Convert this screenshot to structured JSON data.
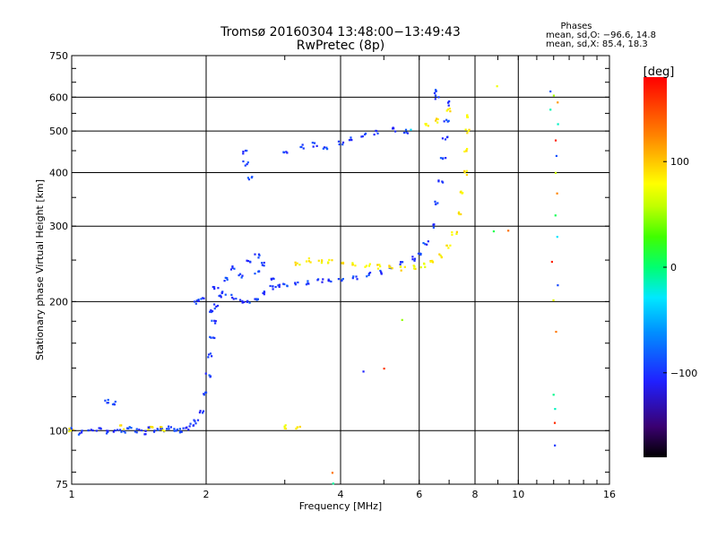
{
  "chart_data": {
    "type": "scatter",
    "title": "Tromsø 20160304 13:48:00−13:49:43",
    "subtitle": "RwPretec (8p)",
    "xlabel": "Frequency [MHz]",
    "ylabel": "Stationary phase Virtual Height [km]",
    "xscale": "log",
    "yscale": "log",
    "xlim": [
      1,
      16
    ],
    "ylim": [
      75,
      750
    ],
    "grid": true,
    "x_ticks": [
      1,
      2,
      4,
      6,
      8,
      10,
      16
    ],
    "x_tick_labels": [
      "1",
      "2",
      "4",
      "6",
      "8",
      "10",
      "16"
    ],
    "y_ticks": [
      75,
      100,
      200,
      300,
      400,
      500,
      600,
      750
    ],
    "y_tick_labels": [
      "75",
      "100",
      "200",
      "300",
      "400",
      "500",
      "600",
      "750"
    ],
    "legend": {
      "title": "Phases",
      "lines": [
        "mean, sd,O: −96.6, 14.8",
        "mean, sd,X:  85.4, 18.3"
      ]
    },
    "colorbar": {
      "label": "[deg]",
      "range": [
        -180,
        180
      ],
      "ticks": [
        100,
        0,
        -100
      ],
      "tick_labels": [
        "100",
        "0",
        "−100"
      ]
    },
    "series": [
      {
        "mode": "O",
        "phase_deg": -96.6,
        "points": [
          [
            1.0,
            101
          ],
          [
            1.05,
            99
          ],
          [
            1.1,
            100
          ],
          [
            1.15,
            101
          ],
          [
            1.2,
            99
          ],
          [
            1.25,
            100
          ],
          [
            1.3,
            100
          ],
          [
            1.35,
            101
          ],
          [
            1.4,
            100
          ],
          [
            1.45,
            99
          ],
          [
            1.5,
            101
          ],
          [
            1.55,
            100
          ],
          [
            1.6,
            100
          ],
          [
            1.65,
            102
          ],
          [
            1.7,
            101
          ],
          [
            1.75,
            100
          ],
          [
            1.8,
            101
          ],
          [
            1.85,
            103
          ],
          [
            1.9,
            105
          ],
          [
            1.95,
            110
          ],
          [
            2.0,
            122
          ],
          [
            2.02,
            135
          ],
          [
            2.04,
            150
          ],
          [
            2.06,
            165
          ],
          [
            2.08,
            180
          ],
          [
            2.1,
            195
          ],
          [
            2.15,
            205
          ],
          [
            2.2,
            210
          ],
          [
            2.3,
            205
          ],
          [
            2.4,
            200
          ],
          [
            2.5,
            199
          ],
          [
            2.6,
            202
          ],
          [
            2.7,
            210
          ],
          [
            2.8,
            215
          ],
          [
            2.9,
            218
          ],
          [
            3.0,
            219
          ],
          [
            3.2,
            221
          ],
          [
            3.4,
            222
          ],
          [
            3.6,
            223
          ],
          [
            3.8,
            224
          ],
          [
            4.0,
            225
          ],
          [
            4.3,
            228
          ],
          [
            4.6,
            231
          ],
          [
            4.9,
            235
          ],
          [
            5.2,
            239
          ],
          [
            5.5,
            245
          ],
          [
            5.8,
            252
          ],
          [
            6.0,
            260
          ],
          [
            6.2,
            275
          ],
          [
            6.4,
            300
          ],
          [
            6.6,
            340
          ],
          [
            6.7,
            380
          ],
          [
            6.8,
            430
          ],
          [
            6.85,
            480
          ],
          [
            6.9,
            530
          ],
          [
            6.95,
            580
          ],
          [
            1.2,
            117
          ],
          [
            1.25,
            116
          ],
          [
            1.9,
            200
          ],
          [
            1.95,
            202
          ],
          [
            2.05,
            190
          ],
          [
            2.1,
            215
          ],
          [
            2.2,
            225
          ],
          [
            2.3,
            240
          ],
          [
            2.4,
            230
          ],
          [
            2.5,
            250
          ],
          [
            2.6,
            235
          ],
          [
            2.7,
            245
          ],
          [
            2.8,
            228
          ],
          [
            2.45,
            420
          ],
          [
            2.45,
            445
          ],
          [
            2.5,
            390
          ],
          [
            2.6,
            255
          ],
          [
            3.0,
            450
          ],
          [
            3.3,
            460
          ],
          [
            3.5,
            465
          ],
          [
            3.7,
            455
          ],
          [
            4.0,
            470
          ],
          [
            4.2,
            480
          ],
          [
            4.5,
            490
          ],
          [
            4.8,
            495
          ],
          [
            5.3,
            505
          ],
          [
            5.6,
            500
          ],
          [
            6.5,
            620
          ],
          [
            6.6,
            600
          ]
        ]
      },
      {
        "mode": "X",
        "phase_deg": 85.4,
        "points": [
          [
            3.2,
            245
          ],
          [
            3.4,
            250
          ],
          [
            3.6,
            249
          ],
          [
            3.8,
            248
          ],
          [
            4.0,
            247
          ],
          [
            4.3,
            245
          ],
          [
            4.6,
            243
          ],
          [
            4.9,
            241
          ],
          [
            5.2,
            240
          ],
          [
            5.5,
            239
          ],
          [
            5.8,
            240
          ],
          [
            6.1,
            243
          ],
          [
            6.4,
            247
          ],
          [
            6.7,
            255
          ],
          [
            7.0,
            270
          ],
          [
            7.2,
            290
          ],
          [
            7.4,
            320
          ],
          [
            7.5,
            360
          ],
          [
            7.6,
            400
          ],
          [
            7.65,
            450
          ],
          [
            7.7,
            500
          ],
          [
            7.7,
            540
          ],
          [
            6.2,
            520
          ],
          [
            6.6,
            530
          ],
          [
            7.0,
            560
          ],
          [
            1.3,
            102
          ],
          [
            1.5,
            101
          ],
          [
            3.0,
            102
          ],
          [
            3.2,
            101
          ],
          [
            1.0,
            100
          ],
          [
            1.6,
            101
          ]
        ]
      },
      {
        "mode": "scatter",
        "phase_deg": 60,
        "points": [
          [
            11.8,
            620
          ],
          [
            12.0,
            610
          ],
          [
            12.1,
            590
          ],
          [
            11.9,
            560
          ],
          [
            12.2,
            520
          ],
          [
            12.0,
            480
          ],
          [
            12.3,
            440
          ],
          [
            12.0,
            400
          ],
          [
            12.2,
            360
          ],
          [
            12.1,
            320
          ],
          [
            12.3,
            280
          ],
          [
            12.0,
            250
          ],
          [
            12.2,
            220
          ],
          [
            12.1,
            200
          ],
          [
            12.3,
            170
          ],
          [
            11.9,
            120
          ],
          [
            12.0,
            112
          ],
          [
            12.1,
            105
          ],
          [
            12.2,
            93
          ],
          [
            9.0,
            640
          ],
          [
            9.5,
            290
          ],
          [
            8.7,
            290
          ],
          [
            5.8,
            505
          ],
          [
            5.0,
            140
          ],
          [
            4.5,
            138
          ],
          [
            5.5,
            180
          ],
          [
            3.8,
            80
          ],
          [
            3.9,
            75
          ]
        ]
      }
    ]
  }
}
